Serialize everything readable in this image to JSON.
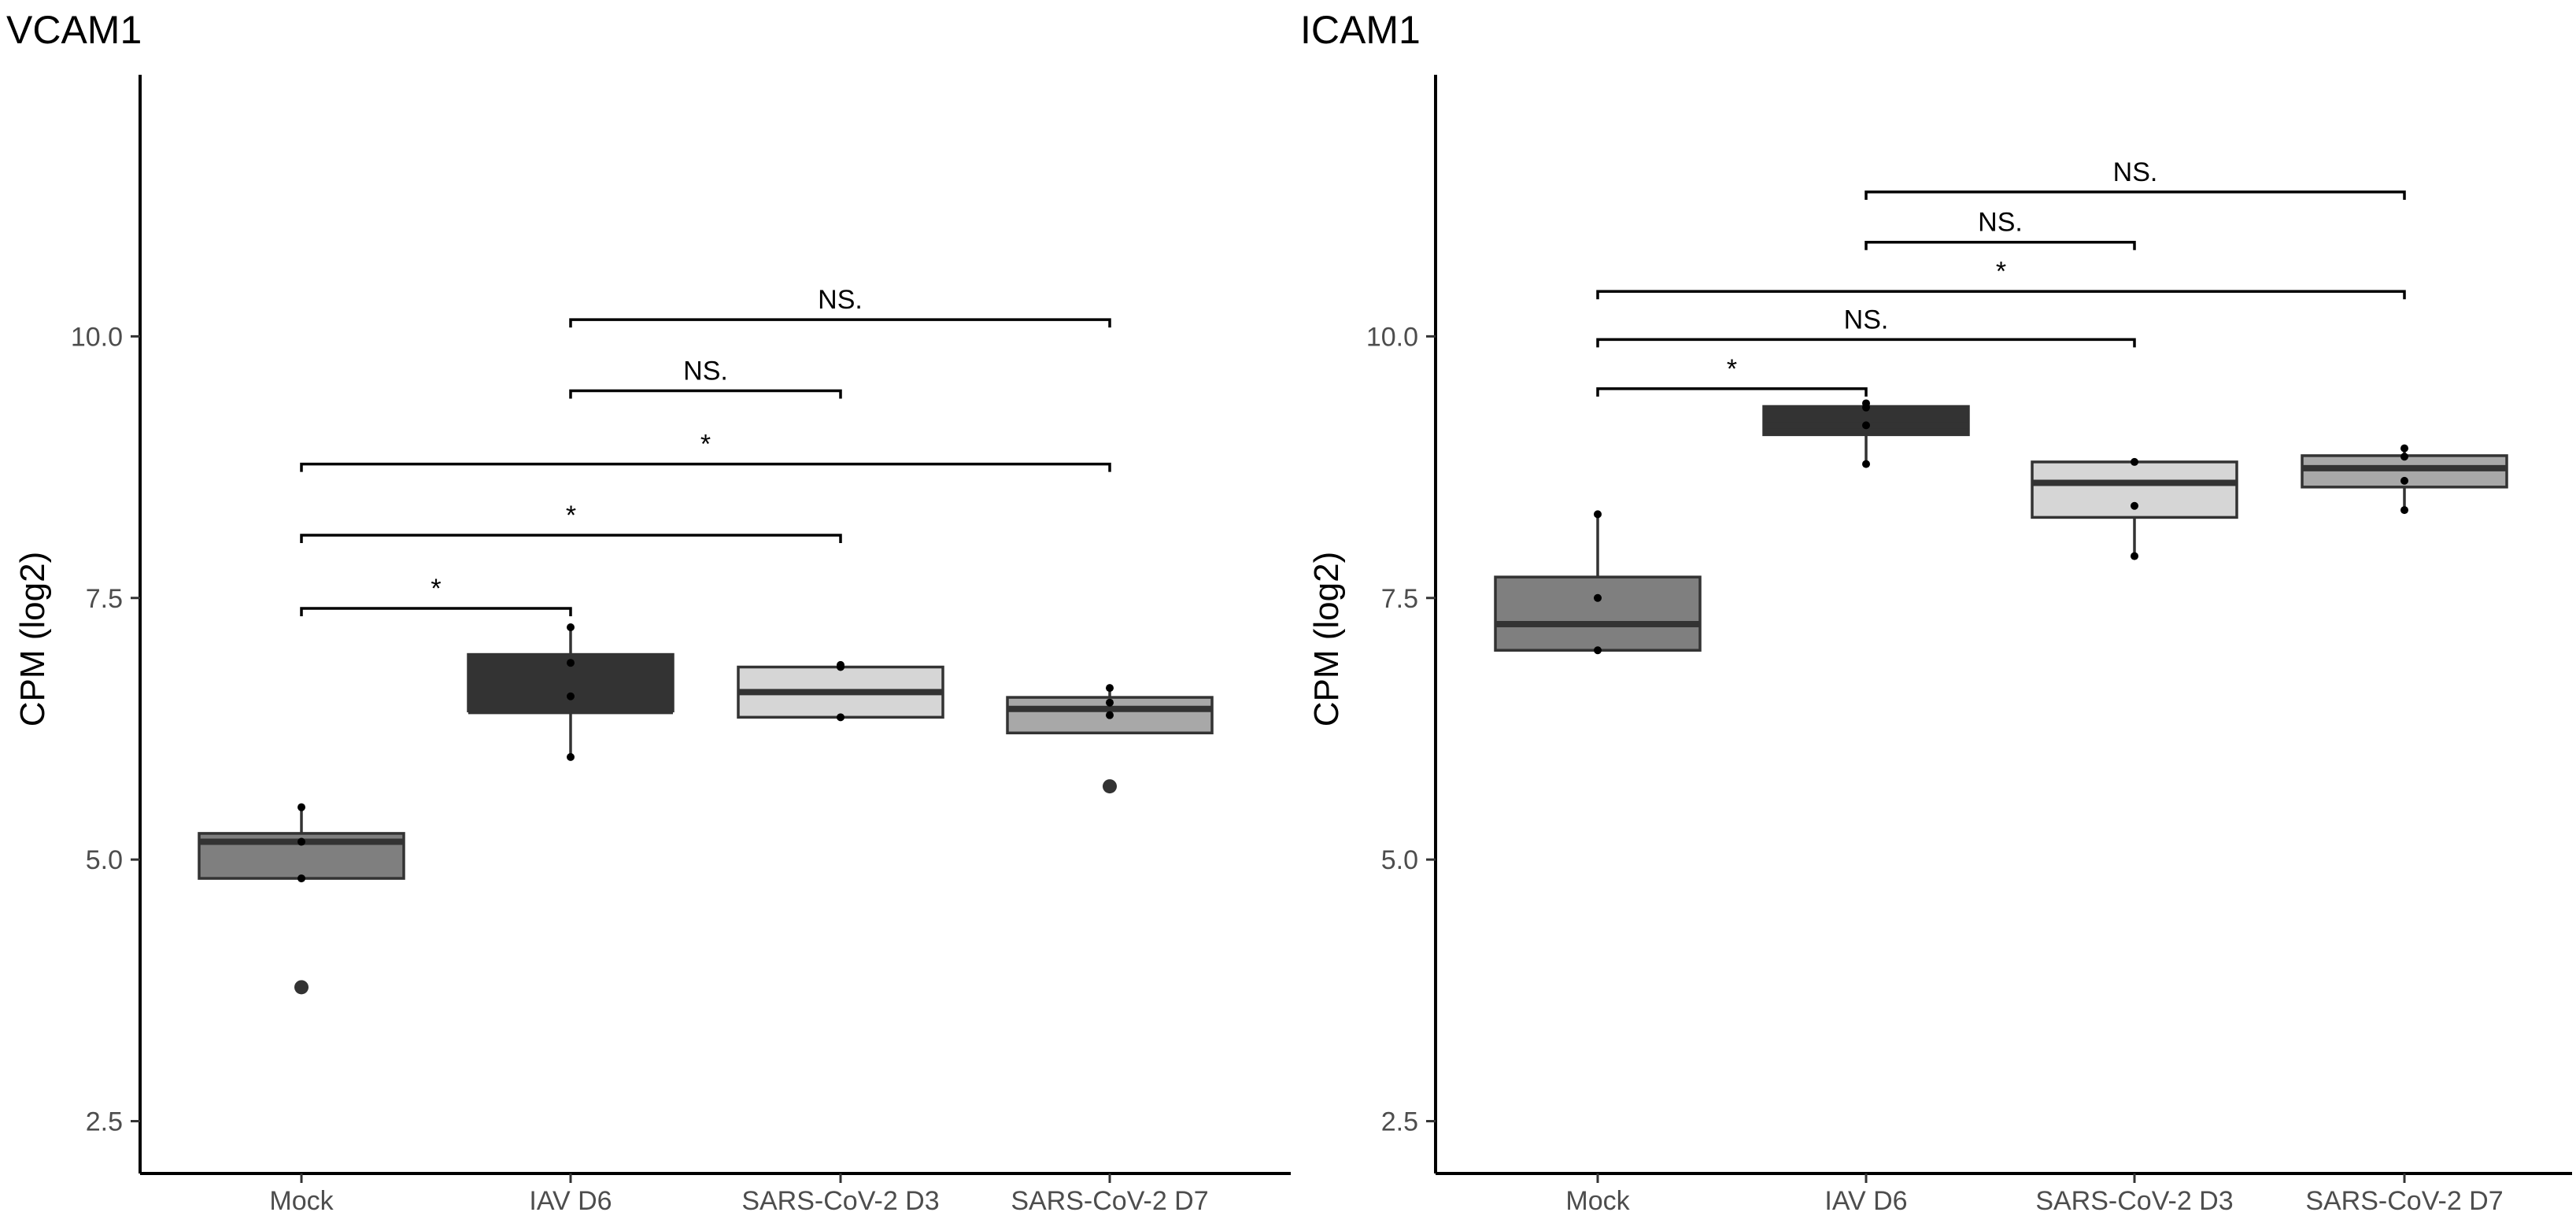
{
  "chart_data": [
    {
      "type": "box",
      "title": "VCAM1",
      "xlabel": "",
      "ylabel": "CPM (log2)",
      "ylim": [
        2.0,
        12.5
      ],
      "yticks": [
        2.5,
        5.0,
        7.5,
        10.0
      ],
      "ytick_labels": [
        "2.5",
        "5.0",
        "7.5",
        "10.0"
      ],
      "categories": [
        "Mock",
        "IAV D6",
        "SARS-CoV-2 D3",
        "SARS-CoV-2 D7"
      ],
      "boxes": [
        {
          "category": "Mock",
          "color": "#7f7f7f",
          "q1": 4.82,
          "median": 5.17,
          "q3": 5.25,
          "whisker_low": 4.82,
          "whisker_high": 5.5,
          "outliers": [
            3.78
          ],
          "points": [
            5.5,
            5.17,
            4.82
          ]
        },
        {
          "category": "IAV D6",
          "color": "#333333",
          "q1": 6.42,
          "median": 6.42,
          "q3": 6.96,
          "whisker_low": 5.98,
          "whisker_high": 7.22,
          "outliers": [],
          "points": [
            7.22,
            6.88,
            6.56,
            5.98
          ]
        },
        {
          "category": "SARS-CoV-2 D3",
          "color": "#d6d6d6",
          "q1": 6.36,
          "median": 6.6,
          "q3": 6.84,
          "whisker_low": 6.36,
          "whisker_high": 6.84,
          "outliers": [],
          "points": [
            6.86,
            6.84,
            6.36
          ]
        },
        {
          "category": "SARS-CoV-2 D7",
          "color": "#a8a8a8",
          "q1": 6.21,
          "median": 6.44,
          "q3": 6.55,
          "whisker_low": 6.21,
          "whisker_high": 6.64,
          "outliers": [
            5.7
          ],
          "points": [
            6.64,
            6.5,
            6.38
          ]
        }
      ],
      "comparisons": [
        {
          "from": "Mock",
          "to": "IAV D6",
          "y": 7.4,
          "label": "*"
        },
        {
          "from": "Mock",
          "to": "SARS-CoV-2 D3",
          "y": 8.1,
          "label": "*"
        },
        {
          "from": "Mock",
          "to": "SARS-CoV-2 D7",
          "y": 8.78,
          "label": "*"
        },
        {
          "from": "IAV D6",
          "to": "SARS-CoV-2 D3",
          "y": 9.48,
          "label": "NS."
        },
        {
          "from": "IAV D6",
          "to": "SARS-CoV-2 D7",
          "y": 10.16,
          "label": "NS."
        }
      ]
    },
    {
      "type": "box",
      "title": "ICAM1",
      "xlabel": "",
      "ylabel": "CPM (log2)",
      "ylim": [
        2.0,
        12.5
      ],
      "yticks": [
        2.5,
        5.0,
        7.5,
        10.0
      ],
      "ytick_labels": [
        "2.5",
        "5.0",
        "7.5",
        "10.0"
      ],
      "categories": [
        "Mock",
        "IAV D6",
        "SARS-CoV-2 D3",
        "SARS-CoV-2 D7"
      ],
      "boxes": [
        {
          "category": "Mock",
          "color": "#7f7f7f",
          "q1": 7.0,
          "median": 7.25,
          "q3": 7.7,
          "whisker_low": 7.0,
          "whisker_high": 8.3,
          "outliers": [],
          "points": [
            8.3,
            7.5,
            7.0
          ]
        },
        {
          "category": "IAV D6",
          "color": "#333333",
          "q1": 9.06,
          "median": 9.15,
          "q3": 9.33,
          "whisker_low": 8.78,
          "whisker_high": 9.36,
          "outliers": [],
          "points": [
            9.36,
            9.32,
            9.15,
            8.78
          ]
        },
        {
          "category": "SARS-CoV-2 D3",
          "color": "#d6d6d6",
          "q1": 8.27,
          "median": 8.6,
          "q3": 8.8,
          "whisker_low": 7.9,
          "whisker_high": 8.8,
          "outliers": [],
          "points": [
            8.8,
            8.38,
            7.9
          ]
        },
        {
          "category": "SARS-CoV-2 D7",
          "color": "#a8a8a8",
          "q1": 8.56,
          "median": 8.74,
          "q3": 8.86,
          "whisker_low": 8.34,
          "whisker_high": 8.93,
          "outliers": [],
          "points": [
            8.93,
            8.85,
            8.62,
            8.34
          ]
        }
      ],
      "comparisons": [
        {
          "from": "Mock",
          "to": "IAV D6",
          "y": 9.5,
          "label": "*"
        },
        {
          "from": "Mock",
          "to": "SARS-CoV-2 D3",
          "y": 9.97,
          "label": "NS."
        },
        {
          "from": "Mock",
          "to": "SARS-CoV-2 D7",
          "y": 10.43,
          "label": "*"
        },
        {
          "from": "IAV D6",
          "to": "SARS-CoV-2 D3",
          "y": 10.9,
          "label": "NS."
        },
        {
          "from": "IAV D6",
          "to": "SARS-CoV-2 D7",
          "y": 11.38,
          "label": "NS."
        }
      ]
    }
  ]
}
